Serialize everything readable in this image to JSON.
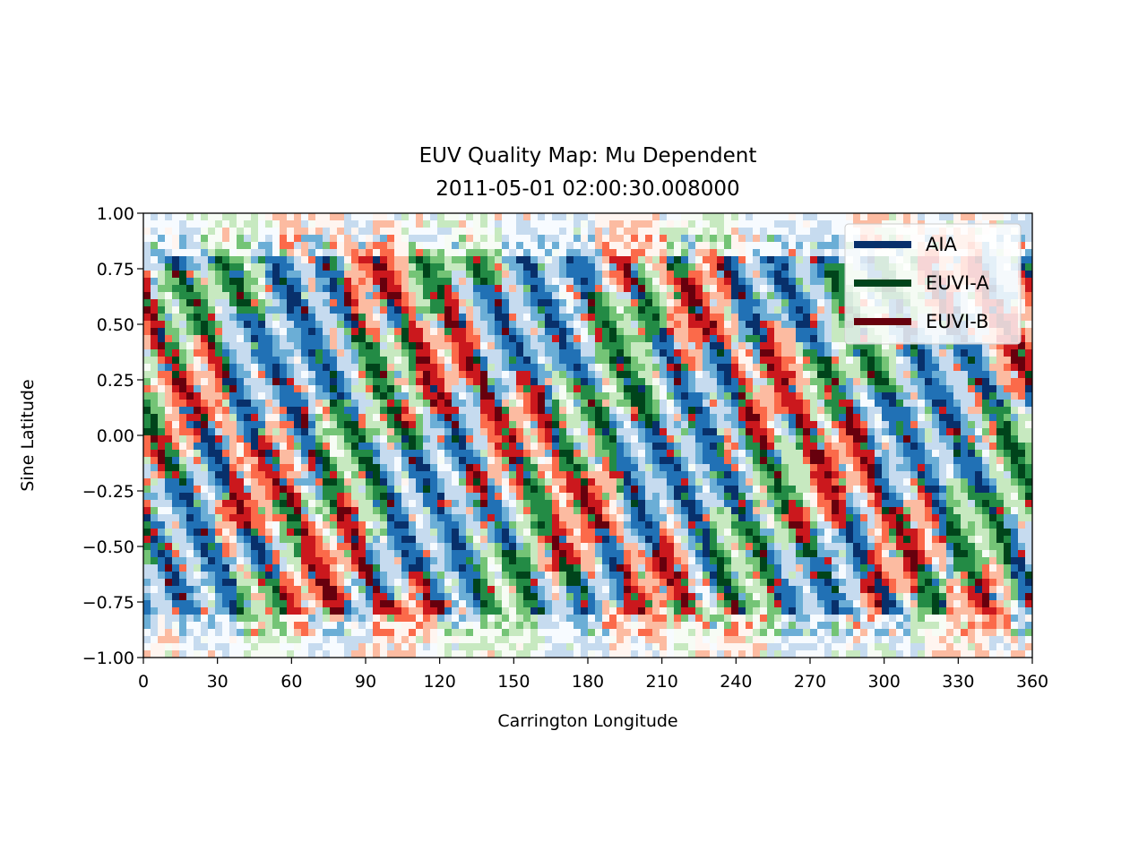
{
  "chart_data": {
    "type": "heatmap",
    "title": "EUV Quality Map: Mu Dependent",
    "subtitle": "2011-05-01 02:00:30.008000",
    "xlabel": "Carrington Longitude",
    "ylabel": "Sine Latitude",
    "xlim": [
      0,
      360
    ],
    "ylim": [
      -1.0,
      1.0
    ],
    "x_ticks": [
      0,
      30,
      60,
      90,
      120,
      150,
      180,
      210,
      240,
      270,
      300,
      330,
      360
    ],
    "x_tick_labels": [
      "0",
      "30",
      "60",
      "90",
      "120",
      "150",
      "180",
      "210",
      "240",
      "270",
      "300",
      "330",
      "360"
    ],
    "y_ticks": [
      1.0,
      0.75,
      0.5,
      0.25,
      0.0,
      -0.25,
      -0.5,
      -0.75,
      -1.0
    ],
    "y_tick_labels": [
      "1.00",
      "0.75",
      "0.50",
      "0.25",
      "0.00",
      "−0.25",
      "−0.50",
      "−0.75",
      "−1.00"
    ],
    "grid": false,
    "legend": {
      "placement": "top-right",
      "entries": [
        {
          "label": "AIA",
          "color": "#08306b"
        },
        {
          "label": "EUVI-A",
          "color": "#00441b"
        },
        {
          "label": "EUVI-B",
          "color": "#67000d"
        }
      ]
    },
    "series": [
      {
        "name": "AIA",
        "colormap": [
          "#f7fbff",
          "#c6dbef",
          "#6baed6",
          "#2171b5",
          "#08306b"
        ]
      },
      {
        "name": "EUVI-A",
        "colormap": [
          "#f7fcf5",
          "#c7e9c0",
          "#74c476",
          "#238b45",
          "#00441b"
        ]
      },
      {
        "name": "EUVI-B",
        "colormap": [
          "#fff5f0",
          "#fcbba1",
          "#fb6a4a",
          "#cb181d",
          "#67000d"
        ]
      }
    ]
  }
}
